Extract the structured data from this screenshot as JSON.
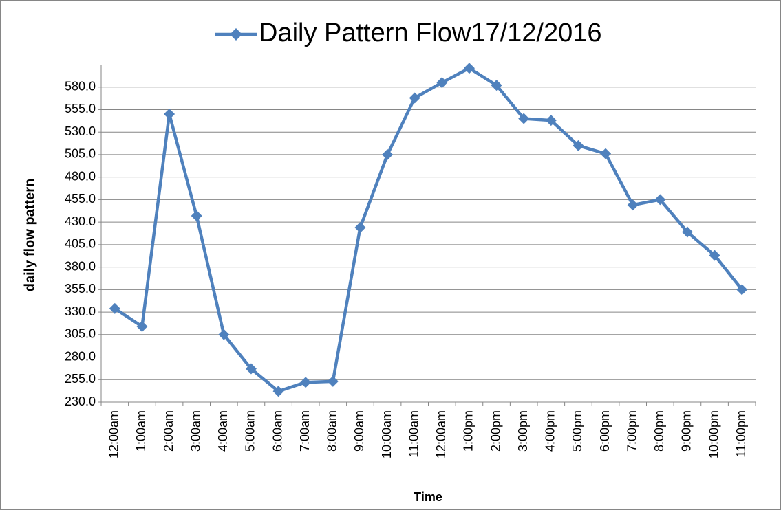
{
  "chart_data": {
    "type": "line",
    "x_label": "Time",
    "y_label": "daily flow pattern",
    "categories": [
      "12:00am",
      "1:00am",
      "2:00am",
      "3:00am",
      "4:00am",
      "5:00am",
      "6:00am",
      "7:00am",
      "8:00am",
      "9:00am",
      "10:00am",
      "11:00am",
      "12:00am",
      "1:00pm",
      "2:00pm",
      "3:00pm",
      "4:00pm",
      "5:00pm",
      "6:00pm",
      "7:00pm",
      "8:00pm",
      "9:00pm",
      "10:00pm",
      "11:00pm"
    ],
    "series": [
      {
        "name": "Daily Pattern Flow17/12/2016",
        "color": "#4f81bd",
        "values": [
          334,
          314,
          550,
          437,
          305,
          267,
          242,
          252,
          253,
          424,
          505,
          568,
          585,
          601,
          582,
          545,
          543,
          515,
          506,
          449,
          455,
          419,
          393,
          355
        ]
      }
    ],
    "ylim": [
      230,
      605
    ],
    "yticks": [
      {
        "value": 230,
        "label": "230.0"
      },
      {
        "value": 255,
        "label": "255.0"
      },
      {
        "value": 280,
        "label": "280.0"
      },
      {
        "value": 305,
        "label": "305.0"
      },
      {
        "value": 330,
        "label": "330.0"
      },
      {
        "value": 355,
        "label": "355.0"
      },
      {
        "value": 380,
        "label": "380.0"
      },
      {
        "value": 405,
        "label": "405.0"
      },
      {
        "value": 430,
        "label": "430.0"
      },
      {
        "value": 455,
        "label": "455.0"
      },
      {
        "value": 480,
        "label": "480.0"
      },
      {
        "value": 505,
        "label": "505.0"
      },
      {
        "value": 530,
        "label": "530.0"
      },
      {
        "value": 555,
        "label": "555.0"
      },
      {
        "value": 580,
        "label": "580.0"
      }
    ],
    "grid": true,
    "legend": "top"
  }
}
